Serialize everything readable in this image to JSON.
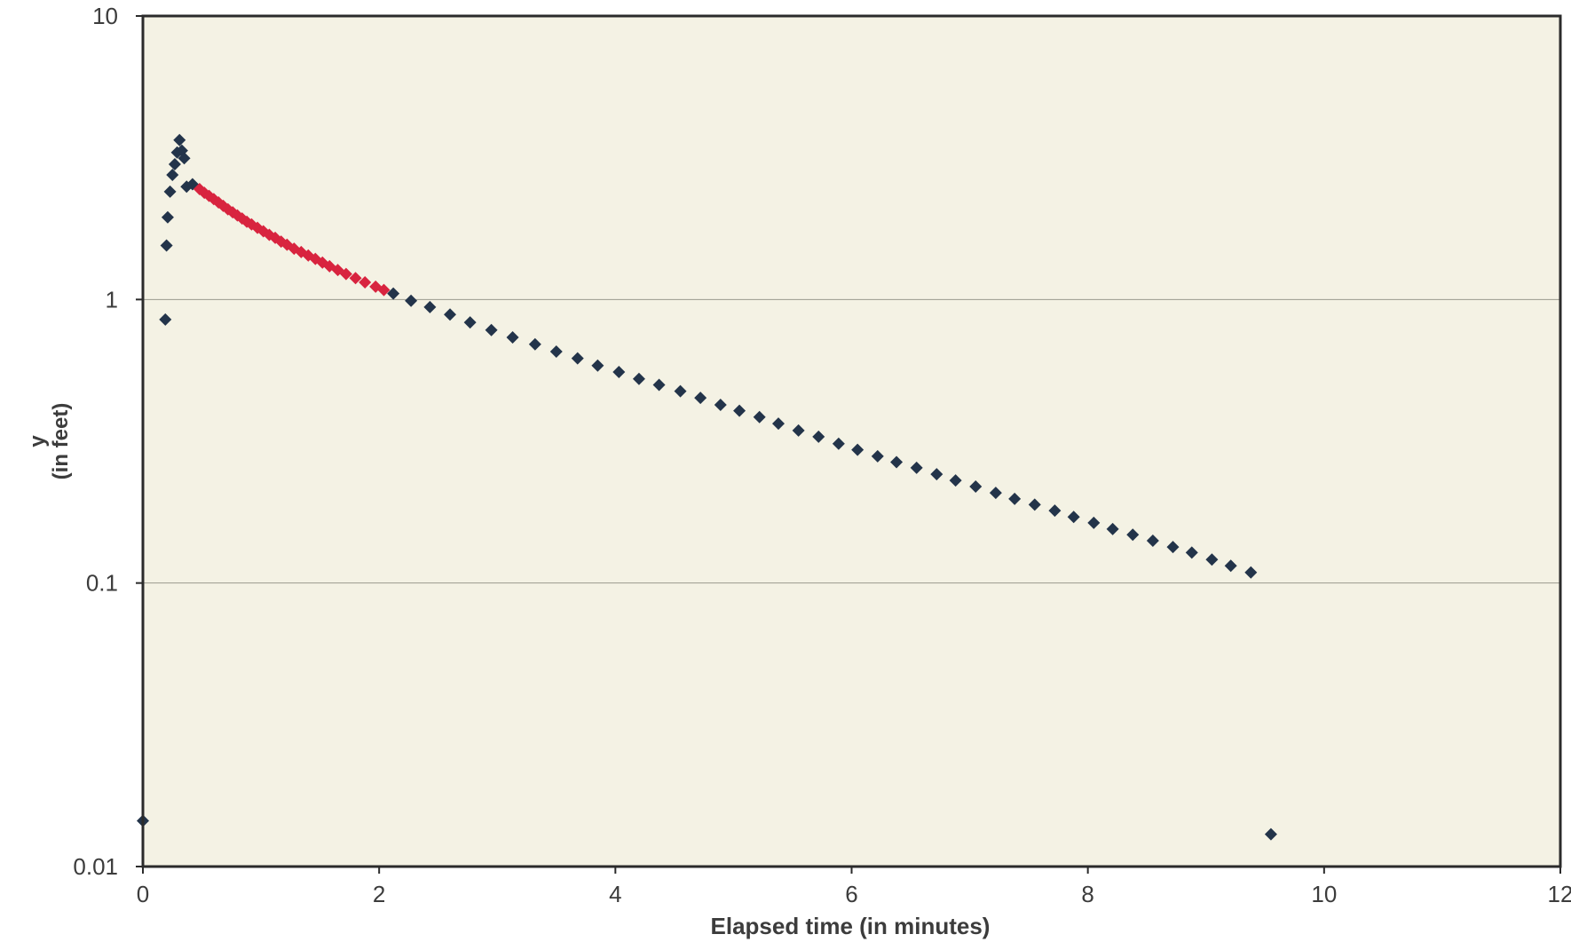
{
  "chart_data": {
    "type": "scatter",
    "title": "",
    "xlabel": "Elapsed time (in minutes)",
    "ylabel_line1": "y",
    "ylabel_line2": "(in feet)",
    "xlim": [
      0,
      12
    ],
    "ylim": [
      0.01,
      10
    ],
    "y_scale": "log",
    "x_ticks": [
      0,
      2,
      4,
      6,
      8,
      10,
      12
    ],
    "y_ticks": [
      0.01,
      0.1,
      1,
      10
    ],
    "y_tick_labels": [
      "0.01",
      "0.1",
      "1",
      "10"
    ],
    "x_tick_labels": [
      "0",
      "2",
      "4",
      "6",
      "8",
      "10",
      "12"
    ],
    "horizontal_gridlines_at": [
      0.1,
      1
    ],
    "legend": "none",
    "colors": {
      "plot_background": "#f4f2e4",
      "frame": "#2b2b2b",
      "series_dark": "#23344a",
      "series_red": "#d8243f",
      "gridline": "#9a9a8e",
      "text": "#3c3c3c"
    },
    "series": [
      {
        "color": "#23344a",
        "points": [
          [
            0.0,
            0.0145
          ],
          [
            0.19,
            0.85
          ],
          [
            0.2,
            1.55
          ],
          [
            0.21,
            1.95
          ],
          [
            0.23,
            2.4
          ],
          [
            0.25,
            2.75
          ],
          [
            0.27,
            3.0
          ],
          [
            0.29,
            3.3
          ],
          [
            0.31,
            3.65
          ],
          [
            0.33,
            3.35
          ],
          [
            0.35,
            3.15
          ],
          [
            0.37,
            2.5
          ],
          [
            0.42,
            2.55
          ],
          [
            2.12,
            1.05
          ],
          [
            2.27,
            0.99
          ],
          [
            2.43,
            0.94
          ],
          [
            2.6,
            0.885
          ],
          [
            2.77,
            0.83
          ],
          [
            2.95,
            0.78
          ],
          [
            3.13,
            0.735
          ],
          [
            3.32,
            0.695
          ],
          [
            3.5,
            0.655
          ],
          [
            3.68,
            0.62
          ],
          [
            3.85,
            0.585
          ],
          [
            4.03,
            0.555
          ],
          [
            4.2,
            0.525
          ],
          [
            4.37,
            0.5
          ],
          [
            4.55,
            0.475
          ],
          [
            4.72,
            0.45
          ],
          [
            4.89,
            0.425
          ],
          [
            5.05,
            0.405
          ],
          [
            5.22,
            0.385
          ],
          [
            5.38,
            0.365
          ],
          [
            5.55,
            0.345
          ],
          [
            5.72,
            0.328
          ],
          [
            5.89,
            0.31
          ],
          [
            6.05,
            0.295
          ],
          [
            6.22,
            0.28
          ],
          [
            6.38,
            0.267
          ],
          [
            6.55,
            0.255
          ],
          [
            6.72,
            0.242
          ],
          [
            6.88,
            0.23
          ],
          [
            7.05,
            0.219
          ],
          [
            7.22,
            0.208
          ],
          [
            7.38,
            0.198
          ],
          [
            7.55,
            0.189
          ],
          [
            7.72,
            0.18
          ],
          [
            7.88,
            0.171
          ],
          [
            8.05,
            0.163
          ],
          [
            8.21,
            0.155
          ],
          [
            8.38,
            0.148
          ],
          [
            8.55,
            0.141
          ],
          [
            8.72,
            0.134
          ],
          [
            8.88,
            0.128
          ],
          [
            9.05,
            0.121
          ],
          [
            9.21,
            0.115
          ],
          [
            9.38,
            0.109
          ],
          [
            9.55,
            0.013
          ]
        ]
      },
      {
        "color": "#d8243f",
        "points": [
          [
            0.48,
            2.45
          ],
          [
            0.52,
            2.38
          ],
          [
            0.56,
            2.32
          ],
          [
            0.6,
            2.26
          ],
          [
            0.64,
            2.2
          ],
          [
            0.68,
            2.14
          ],
          [
            0.72,
            2.08
          ],
          [
            0.76,
            2.03
          ],
          [
            0.8,
            1.98
          ],
          [
            0.84,
            1.93
          ],
          [
            0.88,
            1.88
          ],
          [
            0.92,
            1.84
          ],
          [
            0.97,
            1.79
          ],
          [
            1.02,
            1.74
          ],
          [
            1.07,
            1.69
          ],
          [
            1.12,
            1.65
          ],
          [
            1.17,
            1.6
          ],
          [
            1.22,
            1.56
          ],
          [
            1.28,
            1.51
          ],
          [
            1.34,
            1.47
          ],
          [
            1.4,
            1.43
          ],
          [
            1.46,
            1.39
          ],
          [
            1.52,
            1.35
          ],
          [
            1.58,
            1.31
          ],
          [
            1.65,
            1.27
          ],
          [
            1.72,
            1.23
          ],
          [
            1.8,
            1.19
          ],
          [
            1.88,
            1.15
          ],
          [
            1.97,
            1.11
          ],
          [
            2.04,
            1.08
          ]
        ]
      }
    ]
  }
}
